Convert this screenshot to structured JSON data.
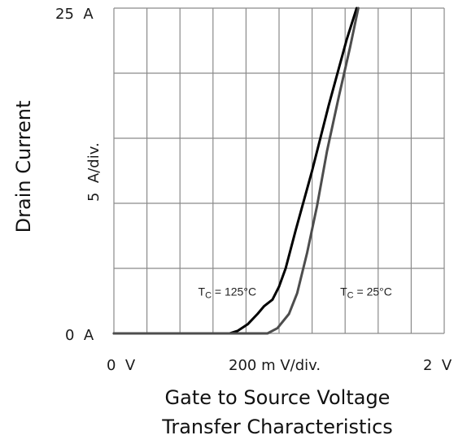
{
  "chart_data": {
    "type": "line",
    "title": "",
    "xlabel": "Gate to Source Voltage",
    "subtitle": "Transfer Characteristics",
    "ylabel": "Drain Current",
    "x_unit": "V",
    "y_unit": "A",
    "xlim": [
      0,
      2
    ],
    "ylim": [
      0,
      25
    ],
    "x_divisions": 10,
    "y_divisions": 5,
    "x_scale_label": "200 m V/div.",
    "y_scale_label": "5  A/div.",
    "x_tick_labels": {
      "min": "0  V",
      "max": "2  V"
    },
    "y_tick_labels": {
      "min": "0  A",
      "max": "25  A"
    },
    "grid": true,
    "series": [
      {
        "name": "T_C = 125°C",
        "label_main": "T",
        "label_sub": "C",
        "label_rest": " = 125°C",
        "color": "#000000",
        "points": [
          [
            0.0,
            0.0
          ],
          [
            0.7,
            0.0
          ],
          [
            0.75,
            0.2
          ],
          [
            0.81,
            0.7
          ],
          [
            0.87,
            1.5
          ],
          [
            0.91,
            2.1
          ],
          [
            0.96,
            2.6
          ],
          [
            1.0,
            3.6
          ],
          [
            1.04,
            5.0
          ],
          [
            1.1,
            7.9
          ],
          [
            1.2,
            12.5
          ],
          [
            1.3,
            17.5
          ],
          [
            1.41,
            22.6
          ],
          [
            1.47,
            25.0
          ]
        ]
      },
      {
        "name": "T_C = 25°C",
        "label_main": "T",
        "label_sub": "C",
        "label_rest": " = 25°C",
        "color": "#4d4d4d",
        "points": [
          [
            0.0,
            0.0
          ],
          [
            0.93,
            0.0
          ],
          [
            0.99,
            0.4
          ],
          [
            1.06,
            1.5
          ],
          [
            1.11,
            3.1
          ],
          [
            1.17,
            6.2
          ],
          [
            1.23,
            9.8
          ],
          [
            1.29,
            14.0
          ],
          [
            1.36,
            18.1
          ],
          [
            1.43,
            22.0
          ],
          [
            1.48,
            25.0
          ]
        ]
      }
    ],
    "annotations": [
      {
        "series": 0,
        "x": 0.51,
        "y": 2.9
      },
      {
        "series": 1,
        "x": 1.37,
        "y": 2.9
      }
    ]
  }
}
